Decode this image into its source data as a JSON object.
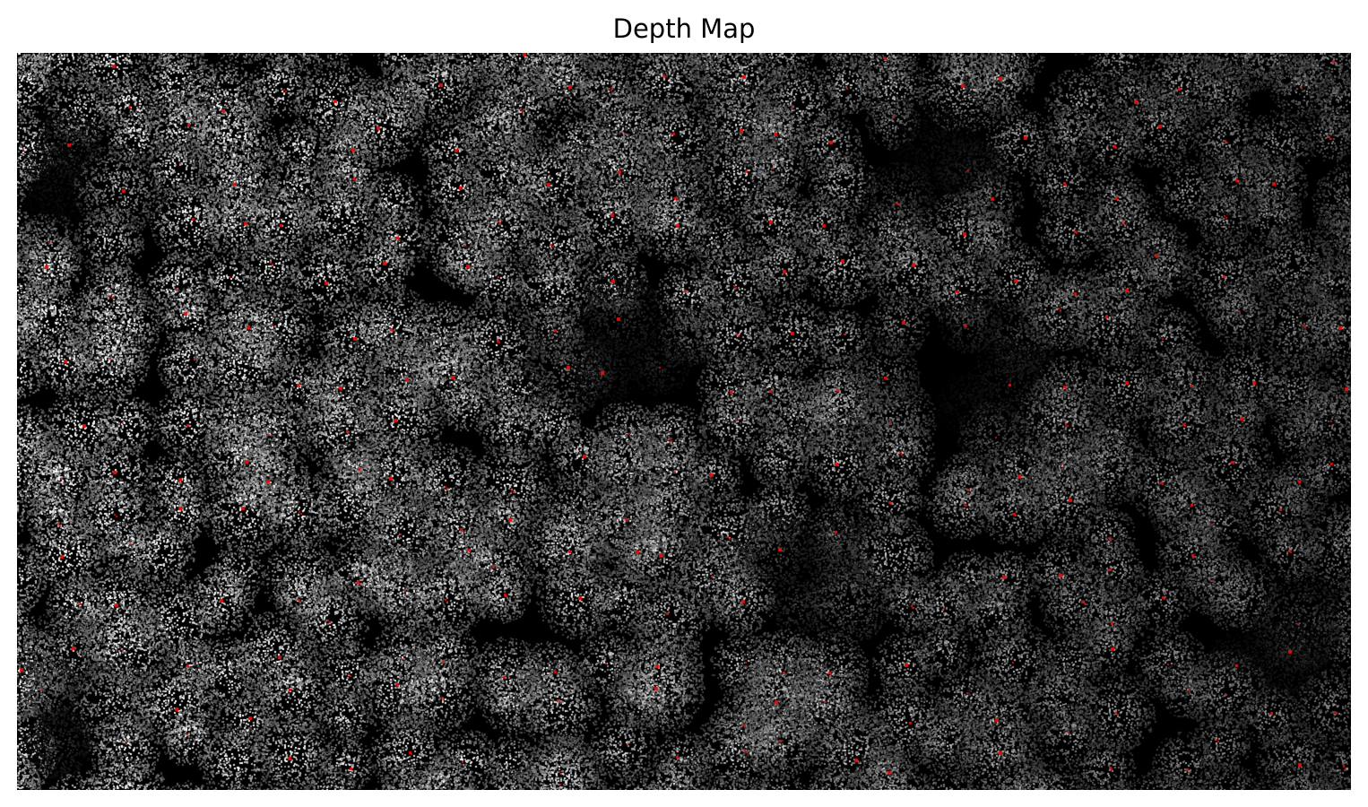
{
  "figure": {
    "title": "Depth Map"
  },
  "image": {
    "kind": "depth-map",
    "colormap": "grayscale",
    "background_color": "#000000",
    "canopy_color": "#ffffff",
    "marker_color": "#e10f0f",
    "axes_visible": false
  }
}
